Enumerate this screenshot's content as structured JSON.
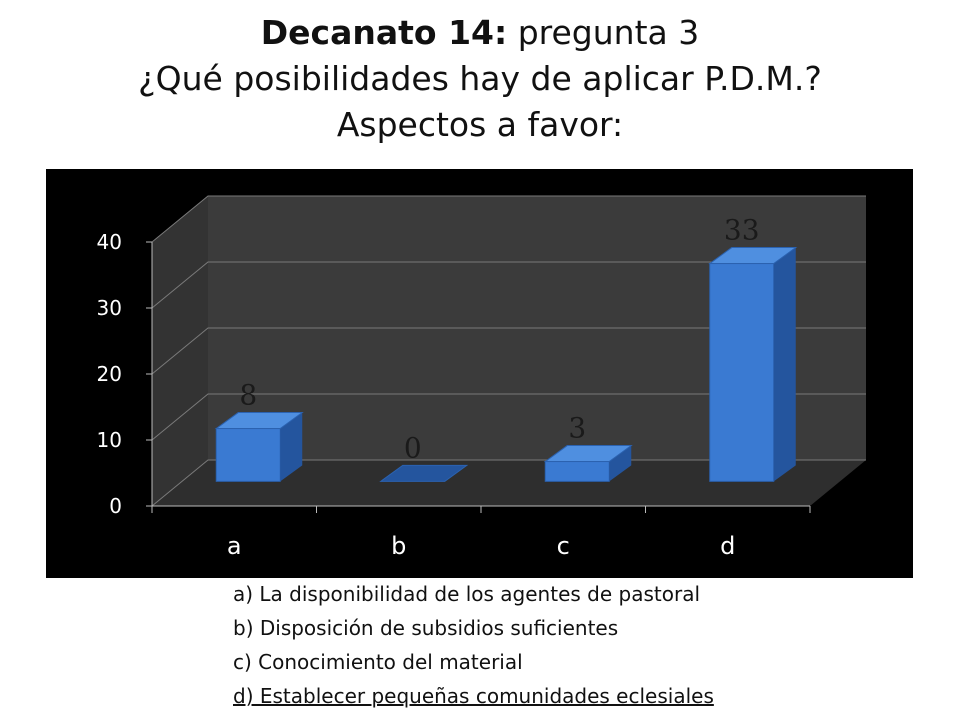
{
  "title": {
    "bold_part": "Decanato 14:",
    "rest_part": " pregunta 3",
    "line2": "¿Qué posibilidades hay de aplicar P.D.M.?",
    "line3": "Aspectos a favor:"
  },
  "legend": [
    {
      "text": "a) La disponibilidad de los agentes de pastoral",
      "underline": false
    },
    {
      "text": "b) Disposición de subsidios suficientes",
      "underline": false
    },
    {
      "text": "c) Conocimiento del material",
      "underline": false
    },
    {
      "text": "d) Establecer pequeñas comunidades eclesiales",
      "underline": true
    }
  ],
  "chart_data": {
    "type": "bar",
    "style": "3d-column",
    "categories": [
      "a",
      "b",
      "c",
      "d"
    ],
    "values": [
      8,
      0,
      3,
      33
    ],
    "data_labels": [
      "8",
      "0",
      "3",
      "33"
    ],
    "ylim": [
      0,
      40
    ],
    "yticks": [
      "0",
      "10",
      "20",
      "30",
      "40"
    ],
    "grid": true,
    "legend": "none",
    "colors": {
      "background": "#000000",
      "wall": "#3b3b3b",
      "floor": "#2e2e2e",
      "gridline": "#7a7a7a",
      "bar_front": "#3a7ad2",
      "bar_top": "#4f8fe0",
      "bar_side": "#24559e",
      "text": "#ffffff",
      "data_label": "#1a1a1a"
    }
  }
}
